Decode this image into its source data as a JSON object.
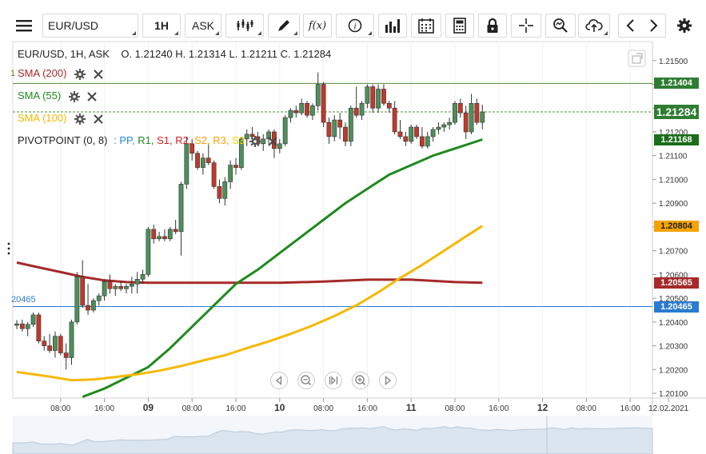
{
  "toolbar": {
    "menu_icon": "hamburger-icon",
    "symbol": "EUR/USD",
    "timeframe": "1H",
    "price_side": "ASK",
    "fx_label": "f(x)",
    "tools": [
      "bar-type-icon",
      "draw-pencil-icon",
      "indicator-fx-icon",
      "info-icon",
      "volume-bars-icon",
      "calendar-icon",
      "calculator-icon",
      "lock-icon",
      "crosshair-icon",
      "zoom-icon",
      "cloud-upload-icon",
      "prev-icon",
      "next-icon",
      "settings-icon"
    ]
  },
  "ohlc_line": {
    "prefix": "EUR/USD, 1H, ASK",
    "open": "O. 1.21240",
    "high": "H. 1.21314",
    "low": "L. 1.21211",
    "close": "C. 1.21284"
  },
  "indicators": [
    {
      "label": "SMA (200)",
      "color": "#a52a2a"
    },
    {
      "label": "SMA (55)",
      "color": "#1e8a1e"
    },
    {
      "label": "SMA (100)",
      "color": "#f5b800"
    }
  ],
  "pivot": {
    "label": "PIVOTPOINT (0, 8)",
    "sep": ":",
    "items": [
      {
        "label": "PP,",
        "color": "#2a86d6"
      },
      {
        "label": "R1,",
        "color": "#1e8a1e"
      },
      {
        "label": "S1,",
        "color": "#d02020"
      },
      {
        "label": "R2,",
        "color": "#d02020"
      },
      {
        "label": "S2,",
        "color": "#f5a000"
      },
      {
        "label": "R3,",
        "color": "#f5a000"
      },
      {
        "label": "S3",
        "color": "#f5d000"
      }
    ]
  },
  "left_price_labels": {
    "top": "1",
    "pp": "20465"
  },
  "price_boxes": [
    {
      "text": "1.21404",
      "color": "#2e7d32",
      "value": 1.21404
    },
    {
      "text": "1.21284",
      "color": "#2e7d32",
      "value": 1.21284,
      "large": true
    },
    {
      "text": "1.21168",
      "color": "#1b6e1b",
      "value": 1.21168
    },
    {
      "text": "1.20804",
      "color": "#f5a300",
      "value": 1.20804,
      "dark_text": true
    },
    {
      "text": "1.20565",
      "color": "#a52a2a",
      "value": 1.20565
    },
    {
      "text": "1.20465",
      "color": "#2a7bd1",
      "value": 1.20465
    }
  ],
  "nav_controls": [
    "scroll-left-icon",
    "zoom-out-icon",
    "reset-zoom-icon",
    "zoom-in-icon",
    "scroll-right-icon"
  ],
  "chart_data": {
    "type": "line",
    "title": "EUR/USD, 1H, ASK",
    "ylim": [
      1.2008,
      1.2158
    ],
    "y_ticks": [
      "1.21500",
      "1.21400",
      "1.21300",
      "1.21200",
      "1.21100",
      "1.21000",
      "1.20900",
      "1.20800",
      "1.20700",
      "1.20600",
      "1.20500",
      "1.20400",
      "1.20300",
      "1.20200",
      "1.20100"
    ],
    "y_tick_values": [
      1.215,
      1.214,
      1.213,
      1.212,
      1.211,
      1.21,
      1.209,
      1.208,
      1.207,
      1.206,
      1.205,
      1.204,
      1.203,
      1.202,
      1.201
    ],
    "x_ticks": [
      {
        "label": "08:00",
        "bold": false,
        "h": 8
      },
      {
        "label": "16:00",
        "bold": false,
        "h": 16
      },
      {
        "label": "09",
        "bold": true,
        "h": 24
      },
      {
        "label": "08:00",
        "bold": false,
        "h": 32
      },
      {
        "label": "16:00",
        "bold": false,
        "h": 40
      },
      {
        "label": "10",
        "bold": true,
        "h": 48
      },
      {
        "label": "08:00",
        "bold": false,
        "h": 56
      },
      {
        "label": "16:00",
        "bold": false,
        "h": 64
      },
      {
        "label": "11",
        "bold": true,
        "h": 72
      },
      {
        "label": "08:00",
        "bold": false,
        "h": 80
      },
      {
        "label": "16:00",
        "bold": false,
        "h": 88
      },
      {
        "label": "12",
        "bold": true,
        "h": 96
      },
      {
        "label": "08:00",
        "bold": false,
        "h": 104
      },
      {
        "label": "16:00",
        "bold": false,
        "h": 112
      },
      {
        "label": "12.02.2021",
        "bold": false,
        "h": 119
      }
    ],
    "hlines": [
      {
        "name": "R1",
        "value": 1.21404,
        "color": "#4f8a3c",
        "dash": false
      },
      {
        "name": "last",
        "value": 1.21284,
        "color": "#4f8a3c",
        "dash": true
      },
      {
        "name": "PP",
        "value": 1.20465,
        "color": "#2a7bd1",
        "dash": false
      }
    ],
    "candles": [
      [
        1.20386,
        1.20408,
        1.2037,
        1.20392
      ],
      [
        1.20392,
        1.2041,
        1.2036,
        1.20372
      ],
      [
        1.20372,
        1.204,
        1.2034,
        1.2039
      ],
      [
        1.2039,
        1.2044,
        1.2038,
        1.2043
      ],
      [
        1.2043,
        1.2044,
        1.2031,
        1.2032
      ],
      [
        1.2032,
        1.2034,
        1.2028,
        1.203
      ],
      [
        1.203,
        1.2035,
        1.2027,
        1.2028
      ],
      [
        1.2028,
        1.2036,
        1.2025,
        1.2034
      ],
      [
        1.2034,
        1.2035,
        1.2026,
        1.2027
      ],
      [
        1.2027,
        1.2031,
        1.202,
        1.2025
      ],
      [
        1.2025,
        1.2041,
        1.2022,
        1.204
      ],
      [
        1.204,
        1.2061,
        1.2039,
        1.2059
      ],
      [
        1.2059,
        1.2066,
        1.2046,
        1.2047
      ],
      [
        1.2047,
        1.2056,
        1.2043,
        1.2045
      ],
      [
        1.2045,
        1.205,
        1.2044,
        1.2049
      ],
      [
        1.2049,
        1.2052,
        1.2047,
        1.2051
      ],
      [
        1.2051,
        1.2058,
        1.2049,
        1.2057
      ],
      [
        1.2057,
        1.206,
        1.2052,
        1.2054
      ],
      [
        1.2054,
        1.2056,
        1.2051,
        1.2055
      ],
      [
        1.2055,
        1.2057,
        1.2053,
        1.2054
      ],
      [
        1.2054,
        1.2056,
        1.2052,
        1.2055
      ],
      [
        1.2055,
        1.2059,
        1.2052,
        1.2056
      ],
      [
        1.2056,
        1.2061,
        1.2052,
        1.2058
      ],
      [
        1.2058,
        1.2062,
        1.2056,
        1.206
      ],
      [
        1.206,
        1.208,
        1.2059,
        1.2079
      ],
      [
        1.2079,
        1.2081,
        1.2073,
        1.2075
      ],
      [
        1.2075,
        1.2078,
        1.2074,
        1.2076
      ],
      [
        1.2076,
        1.2079,
        1.2074,
        1.2075
      ],
      [
        1.2075,
        1.208,
        1.2074,
        1.2079
      ],
      [
        1.2079,
        1.2083,
        1.2077,
        1.2078
      ],
      [
        1.2078,
        1.2099,
        1.2068,
        1.2098
      ],
      [
        1.2098,
        1.2118,
        1.2096,
        1.2115
      ],
      [
        1.2115,
        1.2117,
        1.2108,
        1.2111
      ],
      [
        1.2111,
        1.2112,
        1.2104,
        1.2105
      ],
      [
        1.2105,
        1.2111,
        1.2102,
        1.2109
      ],
      [
        1.2109,
        1.2115,
        1.2106,
        1.2107
      ],
      [
        1.2107,
        1.2108,
        1.2096,
        1.2097
      ],
      [
        1.2097,
        1.21,
        1.209,
        1.2092
      ],
      [
        1.2092,
        1.2101,
        1.2089,
        1.2099
      ],
      [
        1.2099,
        1.2108,
        1.2096,
        1.2106
      ],
      [
        1.2106,
        1.2109,
        1.2102,
        1.2105
      ],
      [
        1.2105,
        1.2118,
        1.2104,
        1.2117
      ],
      [
        1.2117,
        1.2121,
        1.2114,
        1.2119
      ],
      [
        1.2119,
        1.2122,
        1.2116,
        1.2118
      ],
      [
        1.2118,
        1.212,
        1.2114,
        1.2115
      ],
      [
        1.2115,
        1.2119,
        1.2112,
        1.2117
      ],
      [
        1.2117,
        1.2121,
        1.2115,
        1.212
      ],
      [
        1.212,
        1.2121,
        1.2109,
        1.2113
      ],
      [
        1.2113,
        1.2117,
        1.2111,
        1.2115
      ],
      [
        1.2115,
        1.2127,
        1.2114,
        1.2126
      ],
      [
        1.2126,
        1.213,
        1.2124,
        1.2129
      ],
      [
        1.2129,
        1.2131,
        1.2126,
        1.2128
      ],
      [
        1.2128,
        1.2134,
        1.2127,
        1.2132
      ],
      [
        1.2132,
        1.2133,
        1.2126,
        1.2127
      ],
      [
        1.2127,
        1.2132,
        1.2125,
        1.2131
      ],
      [
        1.2131,
        1.2145,
        1.2129,
        1.214
      ],
      [
        1.214,
        1.2141,
        1.2122,
        1.2124
      ],
      [
        1.2124,
        1.2126,
        1.2115,
        1.2118
      ],
      [
        1.2118,
        1.2127,
        1.2116,
        1.2125
      ],
      [
        1.2125,
        1.2128,
        1.2117,
        1.2122
      ],
      [
        1.2122,
        1.2124,
        1.2114,
        1.2116
      ],
      [
        1.2116,
        1.2131,
        1.2114,
        1.213
      ],
      [
        1.213,
        1.2139,
        1.2126,
        1.2127
      ],
      [
        1.2127,
        1.2133,
        1.2125,
        1.2132
      ],
      [
        1.2132,
        1.214,
        1.213,
        1.2139
      ],
      [
        1.2139,
        1.214,
        1.2128,
        1.213
      ],
      [
        1.213,
        1.214,
        1.2128,
        1.2138
      ],
      [
        1.2138,
        1.214,
        1.2131,
        1.2132
      ],
      [
        1.2132,
        1.2133,
        1.2128,
        1.213
      ],
      [
        1.213,
        1.2133,
        1.2119,
        1.212
      ],
      [
        1.212,
        1.2125,
        1.2117,
        1.2118
      ],
      [
        1.2118,
        1.212,
        1.2114,
        1.2116
      ],
      [
        1.2116,
        1.2123,
        1.2115,
        1.2122
      ],
      [
        1.2122,
        1.2123,
        1.2117,
        1.2118
      ],
      [
        1.2118,
        1.2122,
        1.2113,
        1.2114
      ],
      [
        1.2114,
        1.212,
        1.2113,
        1.2118
      ],
      [
        1.2118,
        1.2122,
        1.2116,
        1.2121
      ],
      [
        1.2121,
        1.2124,
        1.2119,
        1.2122
      ],
      [
        1.2122,
        1.2124,
        1.212,
        1.2123
      ],
      [
        1.2123,
        1.2126,
        1.2121,
        1.2124
      ],
      [
        1.2124,
        1.2133,
        1.2123,
        1.2132
      ],
      [
        1.2132,
        1.2134,
        1.2126,
        1.2128
      ],
      [
        1.2128,
        1.2131,
        1.2117,
        1.212
      ],
      [
        1.212,
        1.2136,
        1.2119,
        1.2132
      ],
      [
        1.2132,
        1.2134,
        1.2123,
        1.2124
      ],
      [
        1.2124,
        1.21314,
        1.21211,
        1.21284
      ]
    ],
    "series": [
      {
        "name": "SMA (200)",
        "color": "#a52a2a",
        "x": [
          0,
          4,
          8,
          12,
          16,
          20,
          24,
          28,
          32,
          40,
          48,
          56,
          64,
          72,
          80,
          85
        ],
        "y": [
          1.2065,
          1.2063,
          1.2061,
          1.2059,
          1.20575,
          1.20568,
          1.20565,
          1.20565,
          1.20565,
          1.20565,
          1.20565,
          1.2057,
          1.20578,
          1.20578,
          1.20568,
          1.20565
        ]
      },
      {
        "name": "SMA (55)",
        "color": "#1e8a1e",
        "x": [
          12,
          16,
          20,
          24,
          28,
          32,
          36,
          40,
          44,
          48,
          52,
          56,
          60,
          64,
          68,
          72,
          76,
          80,
          85
        ],
        "y": [
          1.20085,
          1.2012,
          1.20165,
          1.2021,
          1.2029,
          1.2038,
          1.2047,
          1.2056,
          1.2062,
          1.2069,
          1.2076,
          1.2083,
          1.209,
          1.2096,
          1.2102,
          1.2106,
          1.211,
          1.2113,
          1.21168
        ]
      },
      {
        "name": "SMA (100)",
        "color": "#f5b800",
        "x": [
          0,
          6,
          10,
          14,
          18,
          22,
          26,
          30,
          34,
          38,
          42,
          46,
          50,
          54,
          58,
          62,
          66,
          70,
          74,
          78,
          82,
          85
        ],
        "y": [
          1.2019,
          1.2017,
          1.20155,
          1.20158,
          1.20168,
          1.2018,
          1.20195,
          1.20215,
          1.20238,
          1.2026,
          1.2029,
          1.20318,
          1.2035,
          1.20385,
          1.20425,
          1.2047,
          1.20525,
          1.20585,
          1.2064,
          1.207,
          1.2076,
          1.20804
        ]
      }
    ]
  }
}
